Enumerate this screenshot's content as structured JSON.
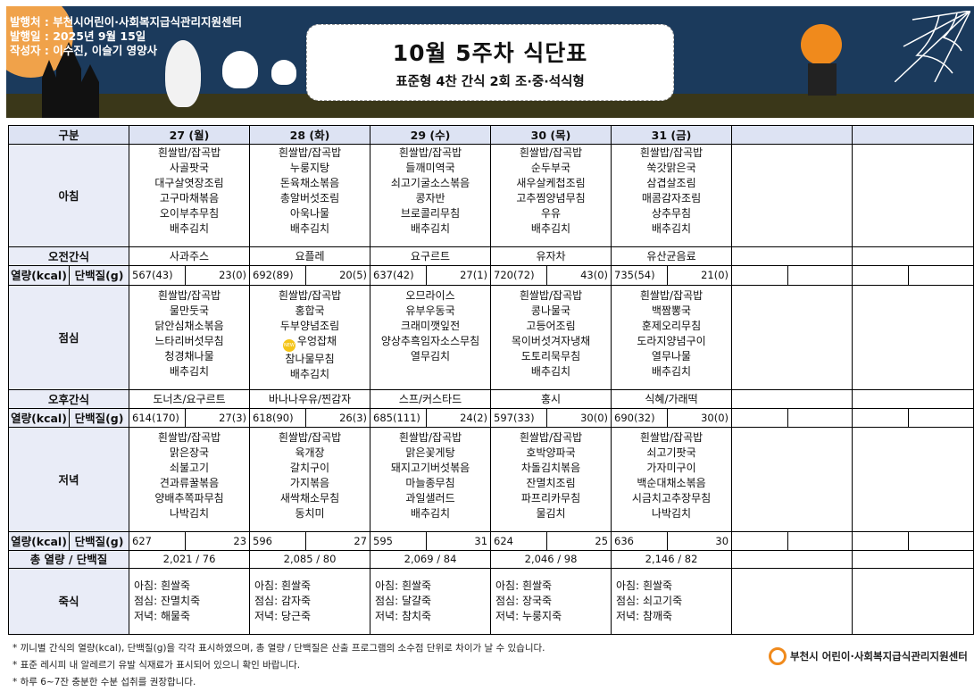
{
  "header": {
    "issuer": "발행처 : 부천시어린이·사회복지급식관리지원센터",
    "issue_date": "발행일 : 2025년 9월 15일",
    "author": "작성자 : 이수진, 이슬기  영양사",
    "title": "10월 5주차 식단표",
    "subtitle": "표준형 4찬 간식 2회 조·중·석식형"
  },
  "colors": {
    "banner": "#1b3a5c",
    "header_row": "#dde3f3",
    "label_cell": "#e9ecf7",
    "logo": "#f08a1c"
  },
  "labels": {
    "category": "구분",
    "breakfast": "아침",
    "am_snack": "오전간식",
    "kcal": "열량(kcal)",
    "protein": "단백질(g)",
    "lunch": "점심",
    "pm_snack": "오후간식",
    "dinner": "저녁",
    "total": "총 열량 / 단백질",
    "porridge": "죽식"
  },
  "days": [
    {
      "date": "27 (월)",
      "breakfast": [
        "흰쌀밥/잡곡밥",
        "사골팟국",
        "대구살엿장조림",
        "고구마채볶음",
        "오이부추무침",
        "배추김치"
      ],
      "am_snack": "사과주스",
      "am_kcal": "567(43)",
      "am_protein": "23(0)",
      "lunch": [
        "흰쌀밥/잡곡밥",
        "물만둣국",
        "닭안심채소볶음",
        "느타리버섯무침",
        "청경채나물",
        "배추김치"
      ],
      "pm_snack": "도너츠/요구르트",
      "pm_kcal": "614(170)",
      "pm_protein": "27(3)",
      "dinner": [
        "흰쌀밥/잡곡밥",
        "맑은장국",
        "쇠불고기",
        "견과류꿀볶음",
        "양배추쪽파무침",
        "나박김치"
      ],
      "dn_kcal": "627",
      "dn_protein": "23",
      "total": "2,021  /  76",
      "porridge": [
        "아침: 흰쌀죽",
        "점심: 잔멸치죽",
        "저녁: 해물죽"
      ]
    },
    {
      "date": "28 (화)",
      "breakfast": [
        "흰쌀밥/잡곡밥",
        "누룽지탕",
        "돈육채소볶음",
        "총알버섯조림",
        "아욱나물",
        "배추김치"
      ],
      "am_snack": "요플레",
      "am_kcal": "692(89)",
      "am_protein": "20(5)",
      "lunch": [
        "흰쌀밥/잡곡밥",
        "홍합국",
        "두부양념조림",
        "우엉잡채",
        "참나물무침",
        "배추김치"
      ],
      "lunch_new_index": 3,
      "new_badge": "NEW",
      "pm_snack": "바나나우유/찐감자",
      "pm_kcal": "618(90)",
      "pm_protein": "26(3)",
      "dinner": [
        "흰쌀밥/잡곡밥",
        "육개장",
        "갈치구이",
        "가지볶음",
        "새싹채소무침",
        "동치미"
      ],
      "dn_kcal": "596",
      "dn_protein": "27",
      "total": "2,085  /  80",
      "porridge": [
        "아침:  흰쌀죽",
        "점심:  감자죽",
        "저녁:  당근죽"
      ]
    },
    {
      "date": "29 (수)",
      "breakfast": [
        "흰쌀밥/잡곡밥",
        "들깨미역국",
        "쇠고기굴소스볶음",
        "콩자반",
        "브로콜리무침",
        "배추김치"
      ],
      "am_snack": "요구르트",
      "am_kcal": "637(42)",
      "am_protein": "27(1)",
      "lunch": [
        "오므라이스",
        "유부우동국",
        "크래미깻잎전",
        "양상추흑임자소스무침",
        "열무김치"
      ],
      "pm_snack": "스프/커스타드",
      "pm_kcal": "685(111)",
      "pm_protein": "24(2)",
      "dinner": [
        "흰쌀밥/잡곡밥",
        "맑은꽃게탕",
        "돼지고기버섯볶음",
        "마늘종무침",
        "과일샐러드",
        "배추김치"
      ],
      "dn_kcal": "595",
      "dn_protein": "31",
      "total": "2,069  /  84",
      "porridge": [
        "아침:  흰쌀죽",
        "점심:  달걀죽",
        "저녁:  참치죽"
      ]
    },
    {
      "date": "30 (목)",
      "breakfast": [
        "흰쌀밥/잡곡밥",
        "순두부국",
        "새우살케첩조림",
        "고추찜양념무침",
        "우유",
        "배추김치"
      ],
      "am_snack": "유자차",
      "am_kcal": "720(72)",
      "am_protein": "43(0)",
      "lunch": [
        "흰쌀밥/잡곡밥",
        "콩나물국",
        "고등어조림",
        "목이버섯겨자냉채",
        "도토리묵무침",
        "배추김치"
      ],
      "pm_snack": "홍시",
      "pm_kcal": "597(33)",
      "pm_protein": "30(0)",
      "dinner": [
        "흰쌀밥/잡곡밥",
        "호박양파국",
        "차돌김치볶음",
        "잔멸치조림",
        "파프리카무침",
        "물김치"
      ],
      "dn_kcal": "624",
      "dn_protein": "25",
      "total": "2,046  /  98",
      "porridge": [
        "아침: 흰쌀죽",
        "점심: 장국죽",
        "저녁: 누룽지죽"
      ]
    },
    {
      "date": "31 (금)",
      "breakfast": [
        "흰쌀밥/잡곡밥",
        "쑥갓맑은국",
        "삼겹살조림",
        "매콤감자조림",
        "상추무침",
        "배추김치"
      ],
      "am_snack": "유산균음료",
      "am_kcal": "735(54)",
      "am_protein": "21(0)",
      "lunch": [
        "흰쌀밥/잡곡밥",
        "백짬뽕국",
        "훈제오리무침",
        "도라지양념구이",
        "열무나물",
        "배추김치"
      ],
      "pm_snack": "식혜/가래떡",
      "pm_kcal": "690(32)",
      "pm_protein": "30(0)",
      "dinner": [
        "흰쌀밥/잡곡밥",
        "쇠고기팟국",
        "가자미구이",
        "백순대채소볶음",
        "시금치고추장무침",
        "나박김치"
      ],
      "dn_kcal": "636",
      "dn_protein": "30",
      "total": "2,146  /  82",
      "porridge": [
        "아침: 흰쌀죽",
        "점심: 쇠고기죽",
        "저녁: 참깨죽"
      ]
    },
    {},
    {}
  ],
  "notes": [
    "* 끼니별 간식의 열량(kcal), 단백질(g)을 각각 표시하였으며, 총 열량 / 단백질은 산출 프로그램의 소수점 단위로 차이가 날 수 있습니다.",
    "* 표준 레시피 내 알레르기 유발 식재료가 표시되어 있으니 확인 바랍니다.",
    "* 하루 6~7잔 충분한 수분 섭취를 권장합니다."
  ],
  "footer_logo": "부천시 어린이·사회복지급식관리지원센터"
}
